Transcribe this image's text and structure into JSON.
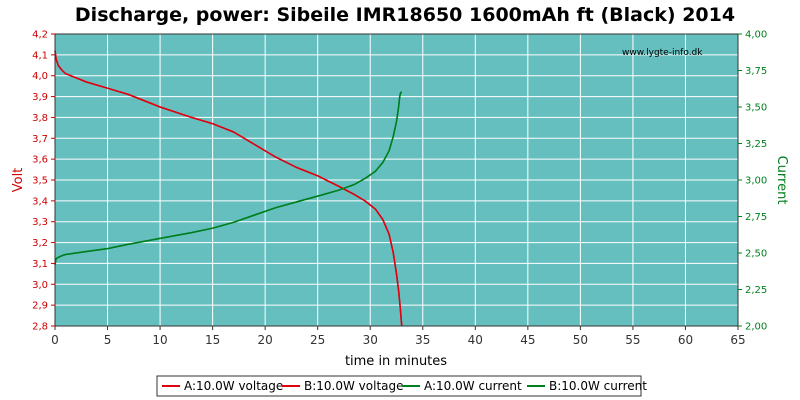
{
  "chart_data": {
    "type": "line",
    "title": "Discharge, power: Sibeile IMR18650 1600mAh ft (Black) 2014",
    "watermark": "www.lygte-info.dk",
    "xlabel": "time in minutes",
    "ylabel_left": "Volt",
    "ylabel_right": "Current",
    "xlim": [
      0,
      65
    ],
    "ylim_left": [
      2.8,
      4.2
    ],
    "ylim_right": [
      2.0,
      4.0
    ],
    "x_ticks": [
      "0",
      "5",
      "10",
      "15",
      "20",
      "25",
      "30",
      "35",
      "40",
      "45",
      "50",
      "55",
      "60",
      "65"
    ],
    "y_left_ticks": [
      "2,8",
      "2,9",
      "3,0",
      "3,1",
      "3,2",
      "3,3",
      "3,4",
      "3,5",
      "3,6",
      "3,7",
      "3,8",
      "3,9",
      "4,0",
      "4,1",
      "4,2"
    ],
    "y_right_ticks": [
      "2,00",
      "2,25",
      "2,50",
      "2,75",
      "3,00",
      "3,25",
      "3,50",
      "3,75",
      "4,00"
    ],
    "grid": true,
    "colors": {
      "plot_bg": "#66bfbf",
      "grid": "#ffffff",
      "voltage": "#e0000f",
      "current": "#007f1e",
      "left_axis": "#cc0000",
      "right_axis": "#007f1e"
    },
    "series": [
      {
        "name": "A:10.0W voltage",
        "axis": "left",
        "color": "#e0000f",
        "x": [
          0,
          0.1,
          0.3,
          0.6,
          1,
          2,
          3,
          5,
          7,
          10,
          13,
          15,
          17,
          19,
          21,
          23,
          25,
          27,
          28.5,
          29.5,
          30.5,
          31.2,
          31.8,
          32.2,
          32.5,
          32.7,
          32.85,
          32.95,
          33.0
        ],
        "y": [
          4.12,
          4.08,
          4.05,
          4.03,
          4.01,
          3.99,
          3.97,
          3.94,
          3.91,
          3.85,
          3.8,
          3.77,
          3.73,
          3.67,
          3.61,
          3.56,
          3.52,
          3.47,
          3.43,
          3.4,
          3.36,
          3.31,
          3.24,
          3.15,
          3.05,
          2.97,
          2.89,
          2.83,
          2.8
        ]
      },
      {
        "name": "B:10.0W voltage",
        "axis": "left",
        "color": "#e0000f",
        "x": [
          0,
          0.1,
          0.3,
          0.6,
          1,
          2,
          3,
          5,
          7,
          10,
          13,
          15,
          17,
          19,
          21,
          23,
          25,
          27,
          28.5,
          29.5,
          30.5,
          31.2,
          31.8,
          32.2,
          32.5,
          32.7,
          32.85,
          32.95,
          33.0
        ],
        "y": [
          4.12,
          4.08,
          4.05,
          4.03,
          4.01,
          3.99,
          3.97,
          3.94,
          3.91,
          3.85,
          3.8,
          3.77,
          3.73,
          3.67,
          3.61,
          3.56,
          3.52,
          3.47,
          3.43,
          3.4,
          3.36,
          3.31,
          3.24,
          3.15,
          3.05,
          2.97,
          2.89,
          2.83,
          2.8
        ]
      },
      {
        "name": "A:10.0W current",
        "axis": "right",
        "color": "#007f1e",
        "x": [
          0,
          0.1,
          0.3,
          0.6,
          1,
          2,
          3,
          5,
          7,
          10,
          13,
          15,
          17,
          19,
          21,
          23,
          25,
          27,
          28.5,
          29.5,
          30.5,
          31.2,
          31.8,
          32.2,
          32.5,
          32.7,
          32.8,
          32.9,
          33.0
        ],
        "y": [
          2.42,
          2.46,
          2.47,
          2.48,
          2.49,
          2.5,
          2.51,
          2.53,
          2.56,
          2.6,
          2.64,
          2.67,
          2.71,
          2.76,
          2.81,
          2.85,
          2.89,
          2.93,
          2.97,
          3.01,
          3.06,
          3.12,
          3.2,
          3.3,
          3.4,
          3.5,
          3.57,
          3.6,
          3.6
        ]
      },
      {
        "name": "B:10.0W current",
        "axis": "right",
        "color": "#007f1e",
        "x": [
          0,
          0.1,
          0.3,
          0.6,
          1,
          2,
          3,
          5,
          7,
          10,
          13,
          15,
          17,
          19,
          21,
          23,
          25,
          27,
          28.5,
          29.5,
          30.5,
          31.2,
          31.8,
          32.2,
          32.5,
          32.7,
          32.8,
          32.9,
          33.0
        ],
        "y": [
          2.42,
          2.46,
          2.47,
          2.48,
          2.49,
          2.5,
          2.51,
          2.53,
          2.56,
          2.6,
          2.64,
          2.67,
          2.71,
          2.76,
          2.81,
          2.85,
          2.89,
          2.93,
          2.97,
          3.01,
          3.06,
          3.12,
          3.2,
          3.3,
          3.4,
          3.5,
          3.57,
          3.6,
          3.6
        ]
      }
    ],
    "legend": {
      "placement": "bottom",
      "entries": [
        {
          "label": "A:10.0W voltage",
          "color": "#e0000f"
        },
        {
          "label": "B:10.0W voltage",
          "color": "#e0000f"
        },
        {
          "label": "A:10.0W current",
          "color": "#007f1e"
        },
        {
          "label": "B:10.0W current",
          "color": "#007f1e"
        }
      ]
    }
  }
}
